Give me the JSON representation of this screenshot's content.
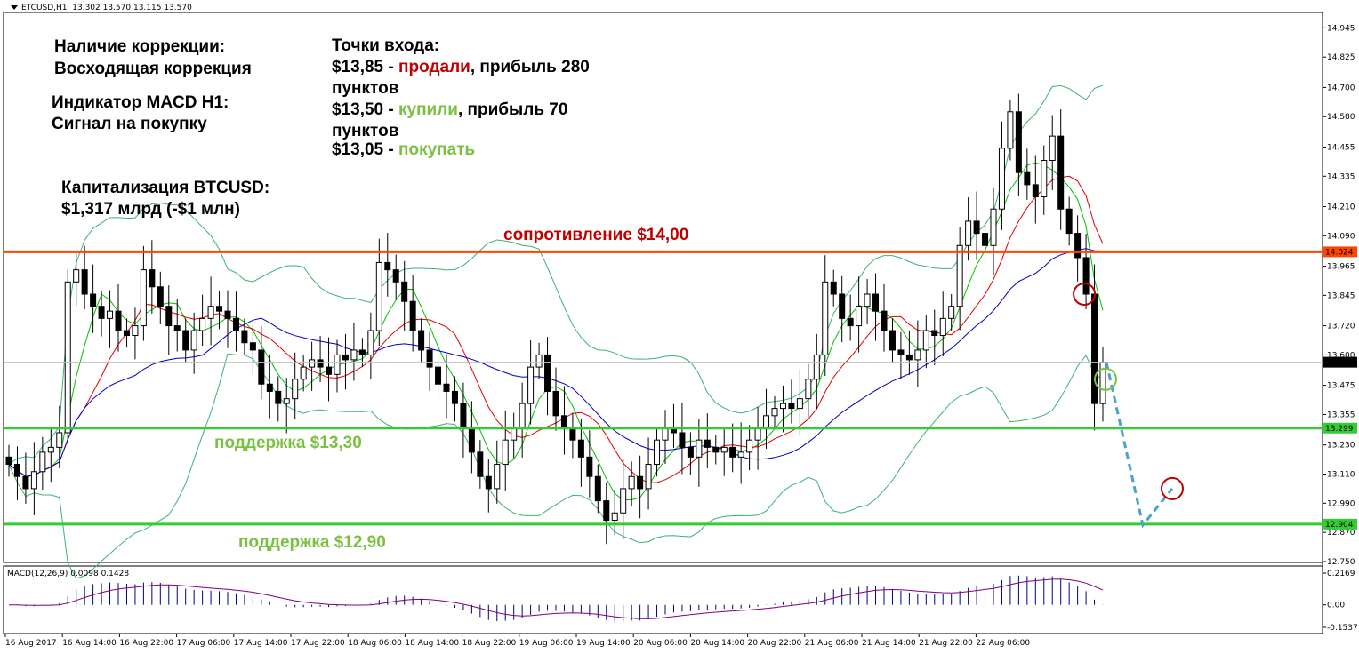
{
  "header": {
    "symbol": "ETCUSD,H1",
    "ohlc": "13.302 13.570 13.115 13.570"
  },
  "macd_header": "MACD(12,26,9) 0.0098 0.1428",
  "annotations": {
    "correction_title": "Наличие коррекции:",
    "correction_value": "Восходящая коррекция",
    "macd_title": "Индикатор MACD H1:",
    "macd_value": "Сигнал на покупку",
    "cap_title": "Капитализация BTCUSD:",
    "cap_value": "$1,317 млрд (-$1 млн)",
    "entry_title": "Точки входа:",
    "entry1_price": "$13,85 - ",
    "entry1_action": "продали",
    "entry1_rest": ", прибыль 280",
    "entry1_cont": "пунктов",
    "entry2_price": "$13,50 - ",
    "entry2_action": "купили",
    "entry2_rest": ", прибыль 70",
    "entry2_cont": "пунктов",
    "entry3_price": "$13,05 - ",
    "entry3_action": "покупать",
    "resistance_label": "сопротивление $14,00",
    "support1_label": "поддержка $13,30",
    "support2_label": "поддержка $12,90"
  },
  "colors": {
    "resistance": "#ff4500",
    "support": "#32cd32",
    "bollinger": "#3cb371",
    "ma_fast": "#00c000",
    "ma_mid": "#e00000",
    "ma_slow": "#0000c0",
    "forecast": "#4aa3c8",
    "sell_circle": "#c00000",
    "buy_circle": "#7ac143",
    "annotation_red": "#c00000",
    "annotation_green": "#7ac143",
    "macd_hist": "#000080",
    "macd_signal": "#800080"
  },
  "chart_data": {
    "type": "candlestick",
    "symbol": "ETCUSD",
    "timeframe": "H1",
    "ylim": [
      12.75,
      14.95
    ],
    "y_ticks": [
      "14.945",
      "14.825",
      "14.700",
      "14.580",
      "14.455",
      "14.335",
      "14.210",
      "14.090",
      "13.965",
      "13.845",
      "13.720",
      "13.600",
      "13.475",
      "13.355",
      "13.230",
      "13.110",
      "12.990",
      "12.870",
      "12.750"
    ],
    "x_ticks": [
      "16 Aug 2017",
      "16 Aug 14:00",
      "16 Aug 22:00",
      "17 Aug 06:00",
      "17 Aug 14:00",
      "17 Aug 22:00",
      "18 Aug 06:00",
      "18 Aug 14:00",
      "18 Aug 22:00",
      "19 Aug 06:00",
      "19 Aug 14:00",
      "20 Aug 06:00",
      "20 Aug 14:00",
      "20 Aug 22:00",
      "21 Aug 06:00",
      "21 Aug 14:00",
      "21 Aug 22:00",
      "22 Aug 06:00"
    ],
    "levels": [
      {
        "name": "resistance",
        "price": 14.024,
        "label": "14.024"
      },
      {
        "name": "support",
        "price": 13.299,
        "label": "13.299"
      },
      {
        "name": "support",
        "price": 12.904,
        "label": "12.904"
      }
    ],
    "current_price": {
      "price": 13.57,
      "label": "13.570"
    },
    "close_series": [
      13.15,
      13.1,
      13.05,
      13.12,
      13.2,
      13.22,
      13.28,
      13.9,
      13.95,
      13.85,
      13.8,
      13.75,
      13.78,
      13.7,
      13.68,
      13.72,
      13.95,
      13.88,
      13.8,
      13.72,
      13.7,
      13.62,
      13.7,
      13.75,
      13.8,
      13.78,
      13.75,
      13.7,
      13.65,
      13.62,
      13.48,
      13.45,
      13.4,
      13.42,
      13.5,
      13.55,
      13.58,
      13.55,
      13.52,
      13.6,
      13.58,
      13.62,
      13.6,
      13.7,
      13.98,
      13.95,
      13.9,
      13.82,
      13.7,
      13.62,
      13.55,
      13.48,
      13.45,
      13.4,
      13.3,
      13.2,
      13.1,
      13.05,
      13.15,
      13.25,
      13.3,
      13.4,
      13.55,
      13.6,
      13.45,
      13.35,
      13.3,
      13.25,
      13.18,
      13.1,
      13.0,
      12.92,
      12.95,
      13.05,
      13.1,
      13.05,
      13.15,
      13.25,
      13.3,
      13.28,
      13.22,
      13.18,
      13.25,
      13.22,
      13.2,
      13.22,
      13.18,
      13.2,
      13.25,
      13.3,
      13.35,
      13.38,
      13.4,
      13.38,
      13.42,
      13.5,
      13.6,
      13.9,
      13.85,
      13.75,
      13.72,
      13.8,
      13.85,
      13.78,
      13.7,
      13.62,
      13.6,
      13.58,
      13.62,
      13.7,
      13.68,
      13.75,
      13.8,
      14.05,
      14.15,
      14.1,
      14.05,
      14.2,
      14.45,
      14.6,
      14.35,
      14.3,
      14.25,
      14.4,
      14.5,
      14.2,
      14.1,
      14.0,
      13.85,
      13.4,
      13.57
    ],
    "forecast_path": [
      {
        "label": "from",
        "price": 13.57
      },
      {
        "label": "target",
        "price": 12.9
      },
      {
        "label": "to",
        "price": 13.05
      }
    ],
    "macd": {
      "ylim": [
        -0.1537,
        0.2169
      ],
      "y_ticks": [
        "0.2169",
        "0.00",
        "-0.1537"
      ],
      "main": 0.0098,
      "signal": 0.1428
    }
  }
}
